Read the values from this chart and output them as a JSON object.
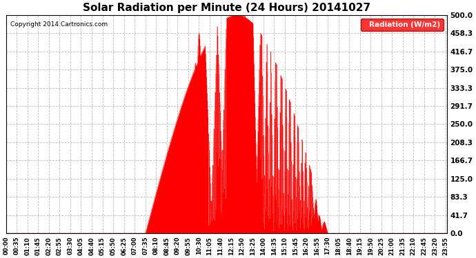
{
  "title": "Solar Radiation per Minute (24 Hours) 20141027",
  "copyright": "Copyright 2014 Cartronics.com",
  "legend_label": "Radiation (W/m2)",
  "background_color": "#ffffff",
  "plot_bg_color": "#ffffff",
  "fill_color": "#ff0000",
  "line_color": "#ff0000",
  "grid_color": "#bbbbbb",
  "dashed_line_color": "#ff0000",
  "ylim": [
    0.0,
    500.0
  ],
  "yticks": [
    0.0,
    41.7,
    83.3,
    125.0,
    166.7,
    208.3,
    250.0,
    291.7,
    333.3,
    375.0,
    416.7,
    458.3,
    500.0
  ],
  "total_minutes": 1440,
  "sunrise_minute": 455,
  "sunset_minute": 1050,
  "peak_minute": 770,
  "peak_value": 500.0,
  "xtick_step": 35
}
